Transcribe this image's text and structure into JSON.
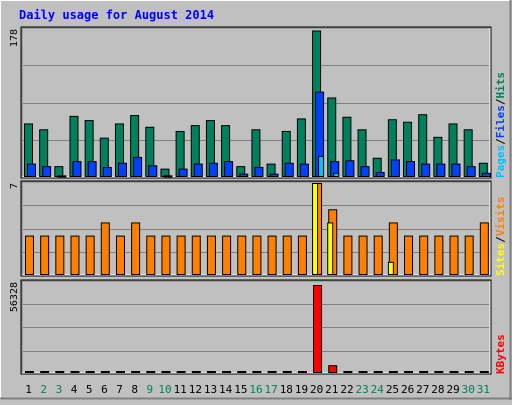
{
  "chart_data": {
    "type": "bar",
    "title": "Daily usage for August 2014",
    "categories": [
      "1",
      "2",
      "3",
      "4",
      "5",
      "6",
      "7",
      "8",
      "9",
      "10",
      "11",
      "12",
      "13",
      "14",
      "15",
      "16",
      "17",
      "18",
      "19",
      "20",
      "21",
      "22",
      "23",
      "24",
      "25",
      "26",
      "27",
      "28",
      "29",
      "30",
      "31"
    ],
    "weekend_days": [
      "2",
      "3",
      "9",
      "10",
      "16",
      "17",
      "23",
      "24",
      "30",
      "31"
    ],
    "panels": [
      {
        "id": "hits_files_pages",
        "ymax": 178,
        "ymax_label": "178",
        "legend": [
          "Pages",
          "/",
          "Files",
          "/",
          "Hits"
        ],
        "series": [
          {
            "name": "Hits",
            "color": "#00805c",
            "values": [
              64,
              57,
              13,
              73,
              68,
              47,
              64,
              74,
              60,
              10,
              55,
              62,
              68,
              62,
              13,
              57,
              16,
              55,
              70,
              175,
              95,
              72,
              57,
              23,
              69,
              66,
              75,
              48,
              64,
              57,
              17
            ]
          },
          {
            "name": "Files",
            "color": "#0040ff",
            "values": [
              16,
              13,
              2,
              19,
              19,
              12,
              17,
              24,
              14,
              2,
              10,
              16,
              17,
              19,
              4,
              12,
              4,
              17,
              16,
              102,
              19,
              20,
              13,
              6,
              21,
              19,
              16,
              16,
              16,
              13,
              5
            ]
          },
          {
            "name": "Pages",
            "color": "#00c0ff",
            "values": [
              0,
              0,
              0,
              0,
              0,
              0,
              0,
              0,
              0,
              0,
              0,
              0,
              0,
              0,
              0,
              0,
              0,
              0,
              0,
              25,
              5,
              0,
              0,
              0,
              0,
              0,
              0,
              0,
              0,
              0,
              0
            ]
          }
        ]
      },
      {
        "id": "visits_sites",
        "ymax": 7,
        "ymax_label": "7",
        "legend": [
          "Sites",
          "/",
          "Visits"
        ],
        "series": [
          {
            "name": "Visits",
            "color": "#ff8000",
            "values": [
              3,
              3,
              3,
              3,
              3,
              4,
              3,
              4,
              3,
              3,
              3,
              3,
              3,
              3,
              3,
              3,
              3,
              3,
              3,
              7,
              5,
              3,
              3,
              3,
              4,
              3,
              3,
              3,
              3,
              3,
              4
            ]
          },
          {
            "name": "Sites",
            "color": "#ffff00",
            "values": [
              0,
              0,
              0,
              0,
              0,
              0,
              0,
              0,
              0,
              0,
              0,
              0,
              0,
              0,
              0,
              0,
              0,
              0,
              0,
              7,
              4,
              0,
              0,
              0,
              1,
              0,
              0,
              0,
              0,
              0,
              0
            ]
          }
        ]
      },
      {
        "id": "kbytes",
        "ymax": 56328,
        "ymax_label": "56328",
        "legend": [
          "KBytes"
        ],
        "series": [
          {
            "name": "KBytes",
            "color": "#ff0000",
            "values": [
              100,
              100,
              100,
              100,
              100,
              100,
              100,
              100,
              100,
              100,
              100,
              100,
              100,
              100,
              100,
              100,
              100,
              100,
              100,
              56328,
              5000,
              100,
              100,
              100,
              100,
              100,
              100,
              100,
              100,
              100,
              100
            ]
          }
        ]
      }
    ]
  },
  "colors": {
    "background": "#c0c0c0",
    "title": "#0000ff",
    "axis_label": "#000000",
    "weekday_label": "#000000",
    "weekend_label": "#00805c",
    "grid": "#808080",
    "legend_slash": "#000000"
  }
}
